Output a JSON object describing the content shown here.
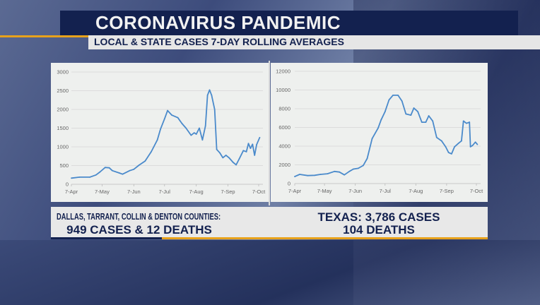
{
  "header": {
    "title": "CORONAVIRUS PANDEMIC",
    "subtitle": "LOCAL & STATE CASES 7-DAY ROLLING AVERAGES"
  },
  "footer": {
    "local_line1": "DALLAS, TARRANT, COLLIN & DENTON COUNTIES:",
    "local_line2": "949 CASES & 12 DEATHS",
    "state_line1": "TEXAS: 3,786 CASES",
    "state_line2": "104 DEATHS"
  },
  "colors": {
    "navy": "#13214f",
    "accent": "#e8a21b",
    "line": "#4a8acb"
  },
  "chart_data": [
    {
      "type": "line",
      "title": "",
      "xlabel": "",
      "ylabel": "",
      "ylim": [
        0,
        3000
      ],
      "yticks": [
        "0",
        "500",
        "1000",
        "1500",
        "2000",
        "2500",
        "3000"
      ],
      "xticks": [
        "7-Apr",
        "7-May",
        "7-Jun",
        "7-Jul",
        "7-Aug",
        "7-Sep",
        "7-Oct"
      ],
      "grid": true,
      "points": [
        [
          "7-Apr",
          165
        ],
        [
          "15-Apr",
          190
        ],
        [
          "25-Apr",
          190
        ],
        [
          "1-May",
          250
        ],
        [
          "5-May",
          330
        ],
        [
          "10-May",
          450
        ],
        [
          "14-May",
          440
        ],
        [
          "17-May",
          365
        ],
        [
          "24-May",
          300
        ],
        [
          "27-May",
          270
        ],
        [
          "3-Jun",
          365
        ],
        [
          "7-Jun",
          400
        ],
        [
          "12-Jun",
          510
        ],
        [
          "18-Jun",
          620
        ],
        [
          "24-Jun",
          870
        ],
        [
          "30-Jun",
          1185
        ],
        [
          "3-Jul",
          1470
        ],
        [
          "7-Jul",
          1750
        ],
        [
          "10-Jul",
          1970
        ],
        [
          "14-Jul",
          1850
        ],
        [
          "20-Jul",
          1780
        ],
        [
          "24-Jul",
          1625
        ],
        [
          "28-Jul",
          1500
        ],
        [
          "2-Aug",
          1310
        ],
        [
          "5-Aug",
          1375
        ],
        [
          "7-Aug",
          1340
        ],
        [
          "10-Aug",
          1500
        ],
        [
          "13-Aug",
          1185
        ],
        [
          "16-Aug",
          1560
        ],
        [
          "18-Aug",
          2380
        ],
        [
          "20-Aug",
          2520
        ],
        [
          "22-Aug",
          2380
        ],
        [
          "25-Aug",
          2000
        ],
        [
          "27-Aug",
          930
        ],
        [
          "30-Aug",
          840
        ],
        [
          "2-Sep",
          710
        ],
        [
          "5-Sep",
          775
        ],
        [
          "8-Sep",
          710
        ],
        [
          "12-Sep",
          585
        ],
        [
          "15-Sep",
          520
        ],
        [
          "18-Sep",
          680
        ],
        [
          "22-Sep",
          900
        ],
        [
          "25-Sep",
          870
        ],
        [
          "27-Sep",
          1090
        ],
        [
          "29-Sep",
          960
        ],
        [
          "1-Oct",
          1070
        ],
        [
          "3-Oct",
          775
        ],
        [
          "5-Oct",
          1060
        ],
        [
          "8-Oct",
          1250
        ]
      ]
    },
    {
      "type": "line",
      "title": "",
      "xlabel": "",
      "ylabel": "",
      "ylim": [
        0,
        12000
      ],
      "yticks": [
        "0",
        "2000",
        "4000",
        "6000",
        "8000",
        "10000",
        "12000"
      ],
      "xticks": [
        "7-Apr",
        "7-May",
        "7-Jun",
        "7-Jul",
        "7-Aug",
        "7-Sep",
        "7-Oct"
      ],
      "grid": true,
      "points": [
        [
          "7-Apr",
          750
        ],
        [
          "12-Apr",
          980
        ],
        [
          "20-Apr",
          850
        ],
        [
          "27-Apr",
          880
        ],
        [
          "3-May",
          980
        ],
        [
          "10-May",
          1050
        ],
        [
          "17-May",
          1300
        ],
        [
          "22-May",
          1230
        ],
        [
          "27-May",
          930
        ],
        [
          "1-Jun",
          1300
        ],
        [
          "5-Jun",
          1550
        ],
        [
          "10-Jun",
          1630
        ],
        [
          "15-Jun",
          1930
        ],
        [
          "19-Jun",
          2680
        ],
        [
          "24-Jun",
          4810
        ],
        [
          "30-Jun",
          5940
        ],
        [
          "3-Jul",
          6810
        ],
        [
          "7-Jul",
          7690
        ],
        [
          "11-Jul",
          8940
        ],
        [
          "15-Jul",
          9440
        ],
        [
          "20-Jul",
          9440
        ],
        [
          "24-Jul",
          8820
        ],
        [
          "28-Jul",
          7440
        ],
        [
          "2-Aug",
          7310
        ],
        [
          "5-Aug",
          8070
        ],
        [
          "9-Aug",
          7690
        ],
        [
          "13-Aug",
          6560
        ],
        [
          "17-Aug",
          6560
        ],
        [
          "20-Aug",
          7240
        ],
        [
          "24-Aug",
          6690
        ],
        [
          "28-Aug",
          4930
        ],
        [
          "2-Sep",
          4560
        ],
        [
          "6-Sep",
          3930
        ],
        [
          "9-Sep",
          3310
        ],
        [
          "12-Sep",
          3180
        ],
        [
          "15-Sep",
          3930
        ],
        [
          "19-Sep",
          4310
        ],
        [
          "22-Sep",
          4560
        ],
        [
          "24-Sep",
          6690
        ],
        [
          "27-Sep",
          6440
        ],
        [
          "30-Sep",
          6560
        ],
        [
          "1-Oct",
          3930
        ],
        [
          "3-Oct",
          4060
        ],
        [
          "6-Oct",
          4430
        ],
        [
          "8-Oct",
          4180
        ]
      ]
    }
  ]
}
